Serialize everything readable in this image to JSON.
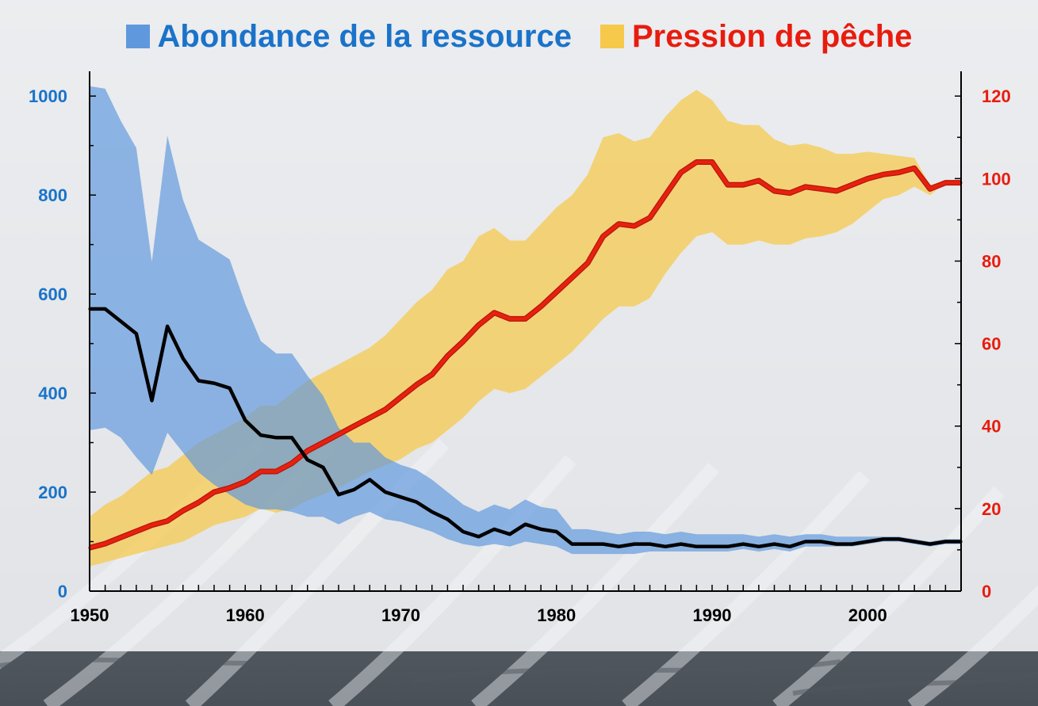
{
  "colors": {
    "left_axis": "#1a73c9",
    "right_axis": "#e81c0e",
    "abundance_band": "#5f98dd",
    "pressure_band": "#f6c94a",
    "abundance_line": "#000000",
    "pressure_line": "#e8200f"
  },
  "chart_data": {
    "type": "line",
    "title": "",
    "legend": [
      {
        "label": "Abondance de la ressource",
        "color": "#1a73c9",
        "icon": "blue-square"
      },
      {
        "label": "Pression de pêche",
        "color": "#e81c0e",
        "icon": "yellow-square"
      }
    ],
    "x": [
      1950,
      1951,
      1952,
      1953,
      1954,
      1955,
      1956,
      1957,
      1958,
      1959,
      1960,
      1961,
      1962,
      1963,
      1964,
      1965,
      1966,
      1967,
      1968,
      1969,
      1970,
      1971,
      1972,
      1973,
      1974,
      1975,
      1976,
      1977,
      1978,
      1979,
      1980,
      1981,
      1982,
      1983,
      1984,
      1985,
      1986,
      1987,
      1988,
      1989,
      1990,
      1991,
      1992,
      1993,
      1994,
      1995,
      1996,
      1997,
      1998,
      1999,
      2000,
      2001,
      2002,
      2003,
      2004,
      2005,
      2006
    ],
    "x_axis": {
      "range": [
        1950,
        2006
      ],
      "ticks": [
        "1950",
        "1960",
        "1970",
        "1980",
        "1990",
        "2000"
      ]
    },
    "y_left": {
      "range": [
        0,
        1050
      ],
      "ticks": [
        "0",
        "200",
        "400",
        "600",
        "800",
        "1000"
      ]
    },
    "y_right": {
      "range": [
        0,
        126
      ],
      "ticks": [
        "0",
        "20",
        "40",
        "60",
        "80",
        "100",
        "120"
      ]
    },
    "series": [
      {
        "name": "Abondance de la ressource",
        "axis": "left",
        "values": [
          570,
          570,
          545,
          520,
          385,
          535,
          470,
          425,
          420,
          410,
          345,
          315,
          310,
          310,
          265,
          250,
          195,
          205,
          225,
          200,
          190,
          180,
          160,
          145,
          120,
          110,
          125,
          115,
          135,
          125,
          120,
          95,
          95,
          95,
          90,
          95,
          95,
          90,
          95,
          90,
          90,
          90,
          95,
          90,
          95,
          90,
          100,
          100,
          95,
          95,
          100,
          105,
          105,
          100,
          95,
          100,
          100
        ],
        "lower": [
          325,
          330,
          310,
          270,
          235,
          320,
          280,
          240,
          215,
          195,
          175,
          165,
          165,
          160,
          150,
          150,
          135,
          150,
          160,
          145,
          140,
          130,
          120,
          105,
          95,
          90,
          95,
          90,
          100,
          95,
          90,
          75,
          75,
          75,
          75,
          75,
          80,
          80,
          80,
          80,
          80,
          80,
          85,
          80,
          85,
          80,
          90,
          90,
          90,
          90,
          95,
          100,
          100,
          95,
          90,
          95,
          95
        ],
        "upper": [
          1020,
          1015,
          950,
          895,
          665,
          920,
          790,
          710,
          690,
          670,
          580,
          505,
          480,
          480,
          435,
          395,
          330,
          300,
          300,
          270,
          255,
          245,
          225,
          200,
          175,
          160,
          175,
          165,
          185,
          170,
          165,
          125,
          125,
          120,
          115,
          120,
          120,
          115,
          120,
          115,
          115,
          115,
          115,
          110,
          115,
          110,
          115,
          115,
          110,
          110,
          110,
          110,
          110,
          105,
          100,
          105,
          105
        ]
      },
      {
        "name": "Pression de pêche",
        "axis": "right",
        "values": [
          10.5,
          11.5,
          13,
          14.5,
          16,
          17,
          19.5,
          21.5,
          24,
          25,
          26.5,
          29,
          29,
          31,
          34,
          36,
          38,
          40,
          42,
          44,
          47,
          50,
          52.5,
          57,
          60.5,
          64.5,
          67.5,
          66,
          66,
          69,
          72.5,
          76,
          79.5,
          86,
          89,
          88.5,
          90.5,
          96,
          101.5,
          104,
          104,
          98.5,
          98.5,
          99.5,
          97,
          96.5,
          98,
          97.5,
          97,
          98.5,
          100,
          101,
          101.5,
          102.5,
          97.5,
          99,
          99
        ],
        "lower": [
          6,
          7,
          8,
          9,
          10,
          11,
          12,
          14,
          16,
          17,
          18,
          20,
          19,
          20,
          22,
          23.5,
          25,
          27,
          29,
          30.5,
          32,
          34.5,
          36,
          39,
          42,
          46,
          49,
          48,
          49,
          52,
          55,
          58,
          62,
          66,
          69,
          69,
          71,
          77,
          82,
          86,
          87,
          84,
          84,
          85,
          84,
          84,
          85.5,
          86,
          87,
          89,
          92,
          95,
          96,
          98,
          96,
          99,
          99
        ],
        "upper": [
          18,
          21,
          23,
          26,
          29,
          30,
          33,
          36,
          38,
          40,
          42,
          45,
          45,
          48,
          51,
          53,
          55,
          57,
          59,
          62,
          66,
          70,
          73,
          78,
          80,
          86,
          88,
          85,
          85,
          89,
          93,
          96,
          101,
          110,
          111,
          109,
          110,
          115,
          119,
          121.5,
          119,
          114,
          113,
          113,
          109.5,
          108,
          108.5,
          107.5,
          106,
          106,
          106.5,
          106,
          105.5,
          105,
          98.5,
          99.5,
          99.5
        ]
      }
    ]
  }
}
